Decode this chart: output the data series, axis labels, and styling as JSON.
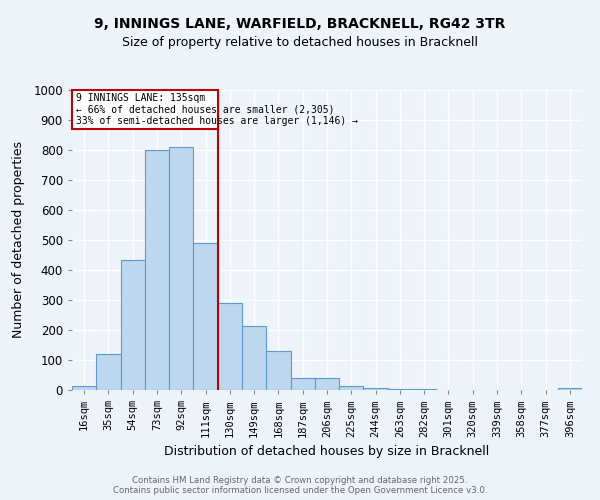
{
  "title_line1": "9, INNINGS LANE, WARFIELD, BRACKNELL, RG42 3TR",
  "title_line2": "Size of property relative to detached houses in Bracknell",
  "xlabel": "Distribution of detached houses by size in Bracknell",
  "ylabel": "Number of detached properties",
  "categories": [
    "16sqm",
    "35sqm",
    "54sqm",
    "73sqm",
    "92sqm",
    "111sqm",
    "130sqm",
    "149sqm",
    "168sqm",
    "187sqm",
    "206sqm",
    "225sqm",
    "244sqm",
    "263sqm",
    "282sqm",
    "301sqm",
    "320sqm",
    "339sqm",
    "358sqm",
    "377sqm",
    "396sqm"
  ],
  "values": [
    15,
    120,
    435,
    800,
    810,
    490,
    290,
    215,
    130,
    40,
    40,
    12,
    8,
    5,
    3,
    0,
    0,
    0,
    0,
    0,
    7
  ],
  "bar_color": "#bdd7ee",
  "bar_edge_color": "#5b9bd5",
  "vline_x": 6.0,
  "vline_color": "#c00000",
  "annotation_text_line1": "9 INNINGS LANE: 135sqm",
  "annotation_text_line2": "← 66% of detached houses are smaller (2,305)",
  "annotation_text_line3": "33% of semi-detached houses are larger (1,146) →",
  "annotation_box_color": "#c00000",
  "ylim": [
    0,
    1000
  ],
  "yticks": [
    0,
    100,
    200,
    300,
    400,
    500,
    600,
    700,
    800,
    900,
    1000
  ],
  "footer_line1": "Contains HM Land Registry data © Crown copyright and database right 2025.",
  "footer_line2": "Contains public sector information licensed under the Open Government Licence v3.0.",
  "background_color": "#eef2f9",
  "grid_color": "#ffffff"
}
